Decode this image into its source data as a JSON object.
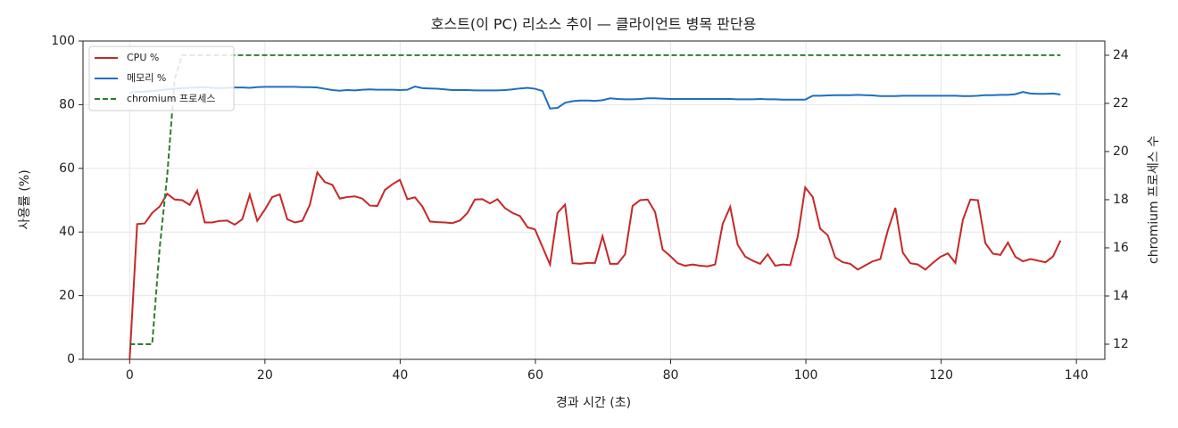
{
  "chart_data": {
    "type": "line",
    "title": "호스트(이 PC) 리소스 추이 — 클라이언트 병목 판단용",
    "x_label": "경과 시간 (초)",
    "y_label": "사용률 (%)",
    "y2_label": "chromium 프로세스 수",
    "x": [
      0,
      1.11,
      2.22,
      3.33,
      4.44,
      5.55,
      6.66,
      7.77,
      8.88,
      9.99,
      11.1,
      12.21,
      13.32,
      14.43,
      15.54,
      16.65,
      17.76,
      18.87,
      19.98,
      21.09,
      22.2,
      23.31,
      24.42,
      25.53,
      26.64,
      27.75,
      28.86,
      29.97,
      31.08,
      32.19,
      33.3,
      34.41,
      35.52,
      36.63,
      37.74,
      38.85,
      39.96,
      41.07,
      42.18,
      43.29,
      44.4,
      45.51,
      46.62,
      47.73,
      48.84,
      49.95,
      51.06,
      52.17,
      53.28,
      54.39,
      55.5,
      56.61,
      57.72,
      58.83,
      59.94,
      61.05,
      62.16,
      63.27,
      64.38,
      65.49,
      66.6,
      67.71,
      68.82,
      69.93,
      71.04,
      72.15,
      73.26,
      74.37,
      75.48,
      76.59,
      77.7,
      78.81,
      79.92,
      81.03,
      82.14,
      83.25,
      84.36,
      85.47,
      86.58,
      87.69,
      88.8,
      89.91,
      91.02,
      92.13,
      93.24,
      94.35,
      95.46,
      96.57,
      97.68,
      98.79,
      99.9,
      101.01,
      102.12,
      103.23,
      104.34,
      105.45,
      106.56,
      107.67,
      108.78,
      109.89,
      111,
      112.11,
      113.22,
      114.33,
      115.44,
      116.55,
      117.66,
      118.77,
      119.88,
      120.99,
      122.1,
      123.21,
      124.32,
      125.43,
      126.54,
      127.65,
      128.76,
      129.87,
      130.98,
      132.09,
      133.2,
      134.31,
      135.42,
      136.53,
      137.64
    ],
    "series": [
      {
        "name": "CPU %",
        "color": "#c62828",
        "dashed": false,
        "values": [
          0,
          42.5,
          42.7,
          46,
          48,
          52,
          50.2,
          50,
          48.5,
          53,
          43,
          43,
          43.5,
          43.6,
          42.3,
          44,
          51.7,
          43.5,
          47,
          51,
          51.8,
          44,
          43,
          43.5,
          48.5,
          58.7,
          55.7,
          54.8,
          50.5,
          51,
          51.2,
          50.5,
          48.3,
          48.2,
          53.2,
          55,
          56.4,
          50.3,
          50.9,
          48,
          43.3,
          43.1,
          43,
          42.8,
          43.6,
          46,
          50.2,
          50.3,
          49,
          50.3,
          47.5,
          46,
          45,
          41.5,
          40.8,
          35.3,
          29.8,
          46,
          48.6,
          30.2,
          30,
          30.3,
          30.3,
          38.7,
          30,
          30,
          33,
          48.2,
          50,
          50.2,
          46.3,
          34.5,
          32.5,
          30.2,
          29.4,
          29.8,
          29.4,
          29.2,
          29.8,
          42.5,
          47.9,
          36,
          32.3,
          31,
          30,
          33,
          29.4,
          29.8,
          29.6,
          38.5,
          54,
          51,
          41,
          39,
          32,
          30.5,
          30,
          28.2,
          29.5,
          30.8,
          31.5,
          40.5,
          47.6,
          33.5,
          30.2,
          29.8,
          28.2,
          30.3,
          32.2,
          33.3,
          30.3,
          43.8,
          50.2,
          50,
          36.5,
          33.2,
          32.8,
          36.7,
          32.2,
          30.8,
          31.5,
          31,
          30.5,
          32.3,
          37.3
        ]
      },
      {
        "name": "메모리 %",
        "color": "#1f6fbf",
        "dashed": false,
        "values": [
          83.8,
          84,
          84.1,
          84.3,
          84.5,
          84.8,
          85,
          85.2,
          85.3,
          85.4,
          85.5,
          85.3,
          85.2,
          85.3,
          85.4,
          85.4,
          85.3,
          85.5,
          85.6,
          85.6,
          85.6,
          85.6,
          85.6,
          85.5,
          85.5,
          85.4,
          85.0,
          84.6,
          84.4,
          84.6,
          84.5,
          84.7,
          84.8,
          84.7,
          84.7,
          84.7,
          84.6,
          84.7,
          85.7,
          85.2,
          85.1,
          85.0,
          84.8,
          84.6,
          84.6,
          84.6,
          84.5,
          84.5,
          84.5,
          84.5,
          84.6,
          84.8,
          85.1,
          85.3,
          85.0,
          84.3,
          78.8,
          79.0,
          80.6,
          81.1,
          81.3,
          81.3,
          81.2,
          81.4,
          82.0,
          81.8,
          81.7,
          81.7,
          81.8,
          82.0,
          82.0,
          81.9,
          81.8,
          81.8,
          81.8,
          81.8,
          81.8,
          81.8,
          81.8,
          81.8,
          81.8,
          81.7,
          81.7,
          81.7,
          81.8,
          81.7,
          81.7,
          81.6,
          81.6,
          81.6,
          81.6,
          82.8,
          82.8,
          82.9,
          83.0,
          83.0,
          83.0,
          83.1,
          83.0,
          82.9,
          82.7,
          82.7,
          82.7,
          82.8,
          82.8,
          82.8,
          82.8,
          82.8,
          82.8,
          82.8,
          82.8,
          82.7,
          82.7,
          82.8,
          83.0,
          83.0,
          83.1,
          83.1,
          83.3,
          84.0,
          83.5,
          83.4,
          83.4,
          83.5,
          83.2
        ]
      },
      {
        "name": "chromium 프로세스",
        "color": "#2e7d32",
        "dashed": true,
        "axis": "y2",
        "values": [
          12,
          12,
          12,
          12,
          16,
          19,
          23,
          24,
          24,
          24,
          24,
          24,
          24,
          24,
          24,
          24,
          24,
          24,
          24,
          24,
          24,
          24,
          24,
          24,
          24,
          24,
          24,
          24,
          24,
          24,
          24,
          24,
          24,
          24,
          24,
          24,
          24,
          24,
          24,
          24,
          24,
          24,
          24,
          24,
          24,
          24,
          24,
          24,
          24,
          24,
          24,
          24,
          24,
          24,
          24,
          24,
          24,
          24,
          24,
          24,
          24,
          24,
          24,
          24,
          24,
          24,
          24,
          24,
          24,
          24,
          24,
          24,
          24,
          24,
          24,
          24,
          24,
          24,
          24,
          24,
          24,
          24,
          24,
          24,
          24,
          24,
          24,
          24,
          24,
          24,
          24,
          24,
          24,
          24,
          24,
          24,
          24,
          24,
          24,
          24,
          24,
          24,
          24,
          24,
          24,
          24,
          24,
          24,
          24,
          24,
          24,
          24,
          24,
          24,
          24,
          24,
          24,
          24,
          24,
          24,
          24,
          24,
          24,
          24,
          24
        ]
      }
    ],
    "xlim": [
      -6.9,
      144.2
    ],
    "xticks": [
      0,
      20,
      40,
      60,
      80,
      100,
      120,
      140
    ],
    "ylim": [
      0,
      100
    ],
    "yticks": [
      0,
      20,
      40,
      60,
      80,
      100
    ],
    "y2lim": [
      11.37,
      24.59
    ],
    "y2ticks": [
      12,
      14,
      16,
      18,
      20,
      22,
      24
    ],
    "grid": true,
    "legend": "upper-left"
  }
}
